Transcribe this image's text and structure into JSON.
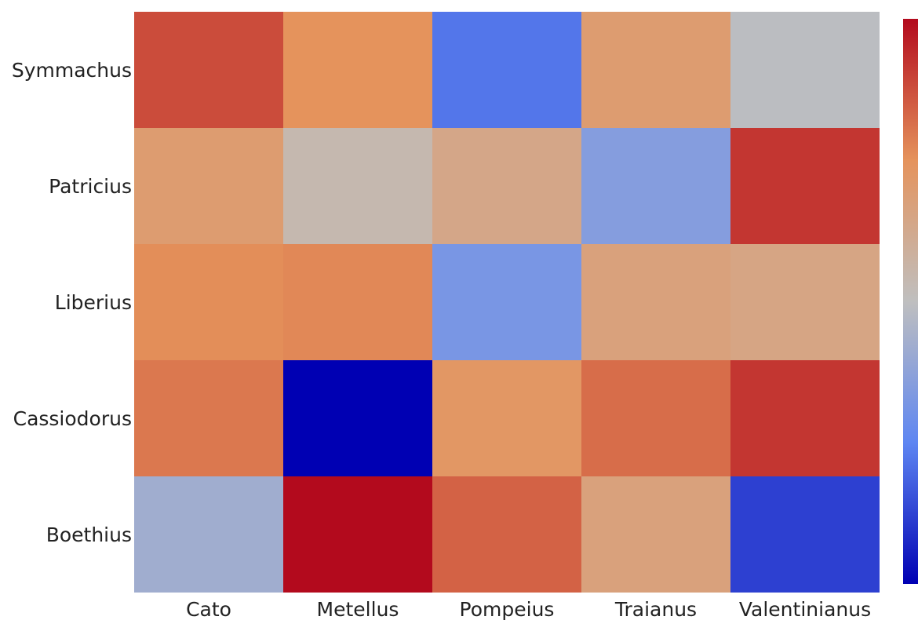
{
  "chart_data": {
    "type": "heatmap",
    "title": "",
    "xlabel": "",
    "ylabel": "",
    "x_categories": [
      "Cato",
      "Metellus",
      "Pompeius",
      "Traianus",
      "Valentinianus"
    ],
    "y_categories": [
      "Symmachus",
      "Patricius",
      "Liberius",
      "Cassiodorus",
      "Boethius"
    ],
    "values": [
      [
        0.88,
        0.75,
        0.22,
        0.7,
        0.49
      ],
      [
        0.7,
        0.54,
        0.64,
        0.35,
        0.92
      ],
      [
        0.76,
        0.77,
        0.32,
        0.67,
        0.65
      ],
      [
        0.8,
        0.0,
        0.73,
        0.82,
        0.92
      ],
      [
        0.42,
        1.0,
        0.84,
        0.67,
        0.12
      ]
    ],
    "colorscale": [
      "#0000b3",
      "#5e86f2",
      "#bfbfbf",
      "#e5935c",
      "#b30a1d"
    ],
    "colorbar": true,
    "grid": false
  }
}
